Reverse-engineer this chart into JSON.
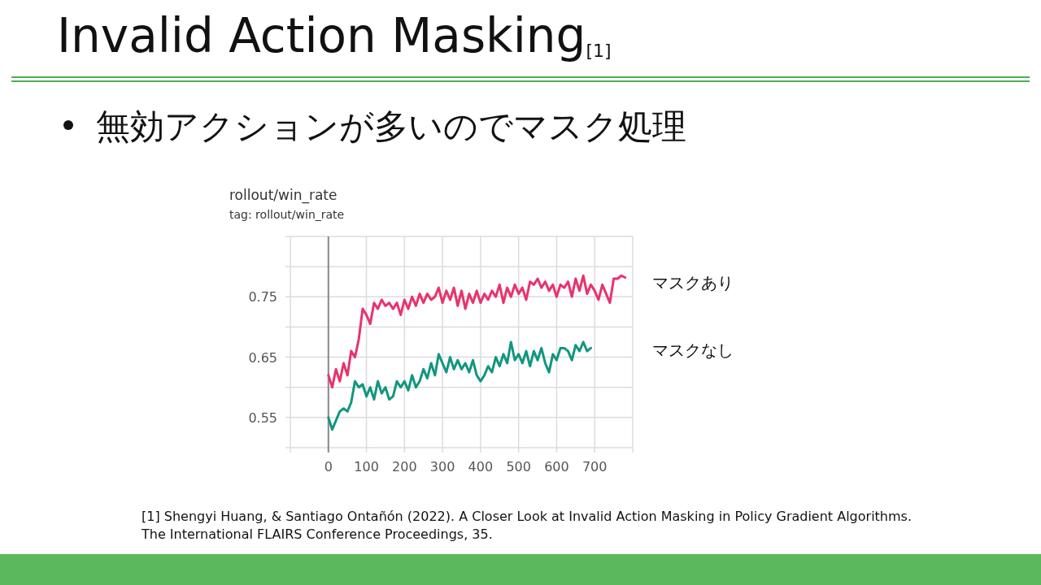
{
  "chart_data": {
    "type": "line",
    "title": "Invalid Action Masking$_{[1]}$",
    "subtitle": "無効アクションが多いのでマスク処理",
    "annotations": [
      "rollout/win_rate",
      "tag: rollout/win_rate",
      "[1] Shengyi Huang, & Santiago Ontañón (2022). A Closer Look at Invalid Action Masking in Policy Gradient Algorithms.",
      "The International FLAIRS Conference Proceedings, 35."
    ],
    "xlim": [
      -100,
      800
    ],
    "xticks": [
      {
        "value": -100,
        "label": null
      },
      0,
      100,
      200,
      300,
      400,
      500,
      600,
      700,
      {
        "value": 800,
        "label": null
      }
    ],
    "ylim": [
      0.5,
      0.85
    ],
    "yticks": [
      {
        "value": 0.5,
        "label": null
      },
      0.55,
      {
        "value": 0.6,
        "label": null
      },
      0.65,
      {
        "value": 0.7,
        "label": null
      },
      0.75,
      {
        "value": 0.8,
        "label": null
      },
      {
        "value": 0.85,
        "label": null
      }
    ],
    "grid": true,
    "line_style": "solid",
    "marker": "none",
    "series": [
      {
        "name": "マスクあり",
        "color": "#e8336d",
        "x": [
          0,
          10,
          20,
          30,
          40,
          50,
          60,
          70,
          80,
          90,
          100,
          110,
          120,
          130,
          140,
          150,
          160,
          170,
          180,
          190,
          200,
          210,
          220,
          230,
          240,
          250,
          260,
          270,
          280,
          290,
          300,
          310,
          320,
          330,
          340,
          350,
          360,
          370,
          380,
          390,
          400,
          410,
          420,
          430,
          440,
          450,
          460,
          470,
          480,
          490,
          500,
          510,
          520,
          530,
          540,
          550,
          560,
          570,
          580,
          590,
          600,
          610,
          620,
          630,
          640,
          650,
          660,
          670,
          680,
          690,
          700,
          710,
          720,
          730,
          740,
          750,
          760,
          770,
          780
        ],
        "values": [
          0.62,
          0.6,
          0.63,
          0.61,
          0.64,
          0.62,
          0.66,
          0.65,
          0.68,
          0.73,
          0.72,
          0.705,
          0.74,
          0.73,
          0.745,
          0.735,
          0.74,
          0.73,
          0.74,
          0.72,
          0.745,
          0.73,
          0.75,
          0.735,
          0.755,
          0.74,
          0.755,
          0.745,
          0.75,
          0.765,
          0.74,
          0.76,
          0.745,
          0.765,
          0.735,
          0.76,
          0.73,
          0.755,
          0.74,
          0.76,
          0.74,
          0.755,
          0.745,
          0.76,
          0.75,
          0.77,
          0.74,
          0.765,
          0.75,
          0.77,
          0.755,
          0.765,
          0.745,
          0.775,
          0.77,
          0.78,
          0.765,
          0.775,
          0.76,
          0.77,
          0.75,
          0.77,
          0.765,
          0.775,
          0.75,
          0.78,
          0.76,
          0.785,
          0.755,
          0.77,
          0.76,
          0.745,
          0.77,
          0.755,
          0.74,
          0.78,
          0.78,
          0.785,
          0.782
        ]
      },
      {
        "name": "マスクなし",
        "color": "#12967f",
        "x": [
          0,
          10,
          20,
          30,
          40,
          50,
          60,
          70,
          80,
          90,
          100,
          110,
          120,
          130,
          140,
          150,
          160,
          170,
          180,
          190,
          200,
          210,
          220,
          230,
          240,
          250,
          260,
          270,
          280,
          290,
          300,
          310,
          320,
          330,
          340,
          350,
          360,
          370,
          380,
          390,
          400,
          410,
          420,
          430,
          440,
          450,
          460,
          470,
          480,
          490,
          500,
          510,
          520,
          530,
          540,
          550,
          560,
          570,
          580,
          590,
          600,
          610,
          620,
          630,
          640,
          650,
          660,
          670,
          680,
          690
        ],
        "values": [
          0.55,
          0.53,
          0.545,
          0.56,
          0.565,
          0.56,
          0.575,
          0.61,
          0.6,
          0.605,
          0.585,
          0.6,
          0.58,
          0.61,
          0.59,
          0.6,
          0.58,
          0.585,
          0.61,
          0.6,
          0.61,
          0.595,
          0.62,
          0.6,
          0.61,
          0.63,
          0.615,
          0.64,
          0.62,
          0.655,
          0.64,
          0.625,
          0.65,
          0.63,
          0.645,
          0.63,
          0.64,
          0.625,
          0.645,
          0.62,
          0.61,
          0.62,
          0.635,
          0.625,
          0.65,
          0.635,
          0.655,
          0.64,
          0.675,
          0.645,
          0.655,
          0.64,
          0.66,
          0.635,
          0.66,
          0.645,
          0.665,
          0.64,
          0.625,
          0.655,
          0.645,
          0.665,
          0.665,
          0.66,
          0.645,
          0.67,
          0.66,
          0.675,
          0.66,
          0.665
        ]
      }
    ]
  }
}
